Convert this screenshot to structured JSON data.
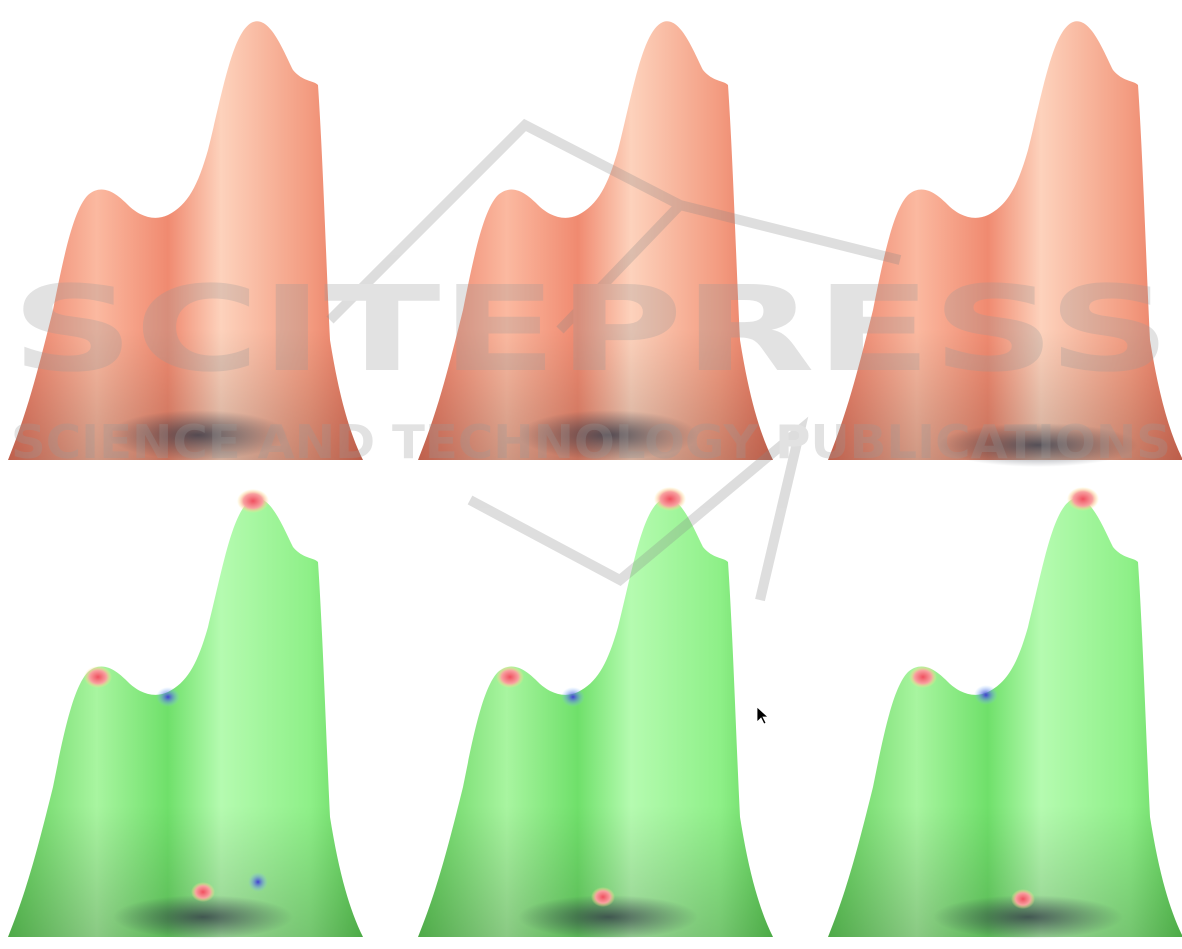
{
  "watermark": {
    "title": "SCITEPRESS",
    "subtitle": "SCIENCE AND TECHNOLOGY PUBLICATIONS"
  }
}
